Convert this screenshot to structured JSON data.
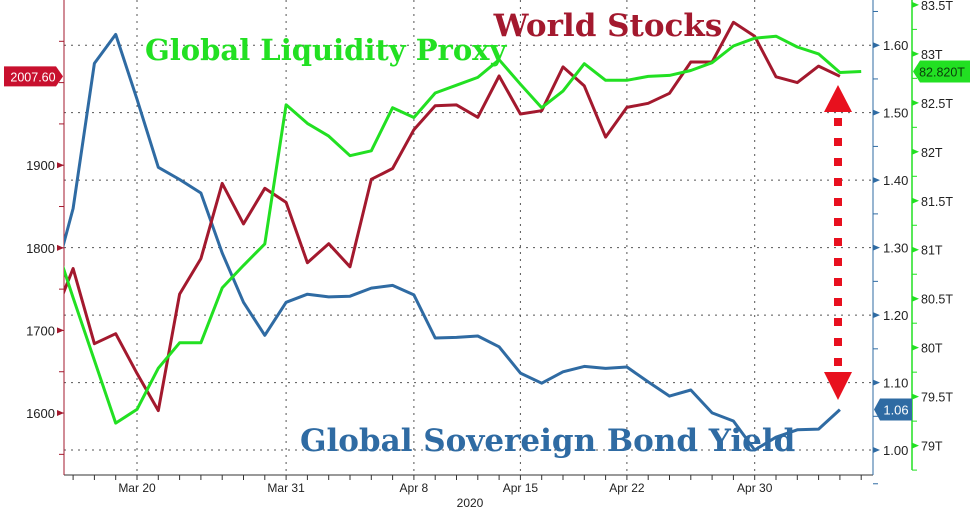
{
  "chart_data": {
    "type": "line",
    "title": "",
    "xlabel": "2020",
    "dates": [
      "Mar 16",
      "Mar 17",
      "Mar 18",
      "Mar 19",
      "Mar 20",
      "Mar 23",
      "Mar 24",
      "Mar 25",
      "Mar 26",
      "Mar 27",
      "Mar 30",
      "Mar 31",
      "Apr 1",
      "Apr 2",
      "Apr 3",
      "Apr 6",
      "Apr 7",
      "Apr 8",
      "Apr 9",
      "Apr 10",
      "Apr 13",
      "Apr 14",
      "Apr 15",
      "Apr 16",
      "Apr 17",
      "Apr 20",
      "Apr 21",
      "Apr 22",
      "Apr 23",
      "Apr 24",
      "Apr 27",
      "Apr 28",
      "Apr 29",
      "Apr 30",
      "May 1",
      "May 4",
      "May 5",
      "May 6",
      "May 7"
    ],
    "x_tick_labels": [
      "Mar 20",
      "Mar 31",
      "Apr 8",
      "Apr 15",
      "Apr 22",
      "Apr 30"
    ],
    "series": [
      {
        "name": "World Stocks",
        "axis": "left",
        "color": "#a3192e",
        "values": [
          1710,
          1775,
          1684,
          1696,
          1648,
          1603,
          1744,
          1787,
          1878,
          1829,
          1872,
          1855,
          1782,
          1805,
          1777,
          1883,
          1896,
          1943,
          1972,
          1973,
          1958,
          2008,
          1962,
          1966,
          2019,
          1996,
          1934,
          1970,
          1975,
          1987,
          2025,
          2025,
          2073,
          2056,
          2007,
          2000,
          2020,
          2007.6,
          null
        ],
        "last_label": "2007.60"
      },
      {
        "name": "Global Sovereign Bond Yield",
        "axis": "right1",
        "color": "#2f6ba3",
        "values": [
          1.24,
          1.358,
          1.573,
          1.616,
          1.52,
          1.419,
          1.401,
          1.381,
          1.292,
          1.219,
          1.17,
          1.219,
          1.231,
          1.227,
          1.228,
          1.24,
          1.244,
          1.23,
          1.166,
          1.167,
          1.169,
          1.153,
          1.114,
          1.099,
          1.116,
          1.124,
          1.121,
          1.123,
          1.101,
          1.08,
          1.089,
          1.055,
          1.043,
          1.0,
          1.019,
          1.03,
          1.031,
          1.06,
          null
        ],
        "last_label": "1.06"
      },
      {
        "name": "Global Liquidity Proxy",
        "axis": "right2",
        "color": "#22e022",
        "values": [
          81.17,
          80.51,
          79.87,
          79.23,
          79.37,
          79.79,
          80.05,
          80.05,
          80.61,
          80.84,
          81.06,
          82.48,
          82.29,
          82.16,
          81.96,
          82.01,
          82.45,
          82.35,
          82.6,
          82.68,
          82.76,
          82.94,
          82.69,
          82.45,
          82.62,
          82.9,
          82.73,
          82.73,
          82.77,
          82.78,
          82.83,
          82.91,
          83.08,
          83.16,
          83.18,
          83.07,
          83.0,
          82.81,
          82.82
        ],
        "last_label": "82.820T"
      }
    ],
    "left_axis": {
      "ticks": [
        "1600",
        "1700",
        "1800",
        "1900"
      ],
      "tick_values": [
        1600,
        1700,
        1800,
        1900
      ],
      "range": [
        1525,
        2100
      ]
    },
    "right1_axis": {
      "ticks": [
        "1.00",
        "1.10",
        "1.20",
        "1.30",
        "1.40",
        "1.50",
        "1.60"
      ],
      "tick_values": [
        1.0,
        1.1,
        1.2,
        1.3,
        1.4,
        1.5,
        1.6
      ],
      "range": [
        0.963,
        1.667
      ]
    },
    "right2_axis": {
      "ticks": [
        "79T",
        "79.5T",
        "80T",
        "80.5T",
        "81T",
        "81.5T",
        "82T",
        "82.5T",
        "83T",
        "83.5T"
      ],
      "tick_values": [
        79,
        79.5,
        80,
        80.5,
        81,
        81.5,
        82,
        82.5,
        83,
        83.5
      ],
      "range": [
        78.7,
        83.55
      ]
    },
    "annotations": {
      "world_stocks": "World Stocks",
      "liquidity": "Global Liquidity Proxy",
      "bond_yield": "Global Sovereign Bond Yield"
    },
    "grid": true
  }
}
